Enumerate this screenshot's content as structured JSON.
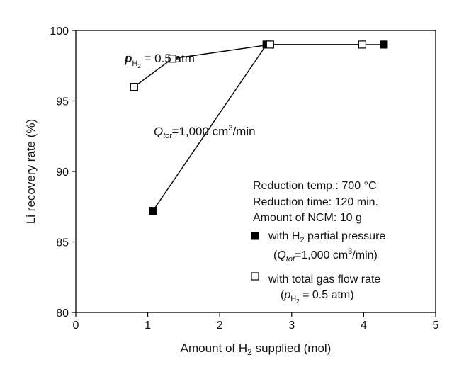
{
  "chart_data": {
    "type": "line",
    "xlabel": {
      "main": "Amount of H",
      "sub": "2",
      "tail": " supplied (mol)"
    },
    "ylabel": "Li recovery rate (%)",
    "xlim": [
      0,
      5
    ],
    "ylim": [
      80,
      100
    ],
    "xticks": [
      "0",
      "1",
      "2",
      "3",
      "4",
      "5"
    ],
    "yticks": [
      "80",
      "85",
      "90",
      "95",
      "100"
    ],
    "grid": false,
    "notes": [
      "Reduction temp.: 700 °C",
      "Reduction time: 120 min.",
      "Amount of NCM: 10 g"
    ],
    "curve_labels": {
      "open": {
        "p": "p",
        "sub": "H",
        "subsub": "2",
        "rest": " = 0.5 atm"
      },
      "filled": {
        "q": "Q",
        "sub": "tot",
        "rest": "=1,000 cm",
        "sup": "3",
        "tail": "/min"
      }
    },
    "legend": {
      "filled": {
        "line1": {
          "a": "with H",
          "sub": "2",
          "b": " partial pressure"
        },
        "line2": {
          "open": "(",
          "q": "Q",
          "sub": "tot",
          "rest": "=1,000 cm",
          "sup": "3",
          "tail": "/min)"
        }
      },
      "open": {
        "line1": "with total gas flow rate",
        "line2": {
          "open": "(",
          "p": "p",
          "sub": "H",
          "subsub": "2",
          "rest": " = 0.5 atm)"
        }
      }
    },
    "series": [
      {
        "marker": "filled-square",
        "x": [
          1.07,
          2.65,
          4.28
        ],
        "y": [
          87.2,
          99.0,
          99.0
        ]
      },
      {
        "marker": "open-square",
        "x": [
          0.81,
          1.34,
          2.7,
          3.98
        ],
        "y": [
          96.0,
          98.0,
          99.0,
          99.0
        ]
      }
    ]
  }
}
